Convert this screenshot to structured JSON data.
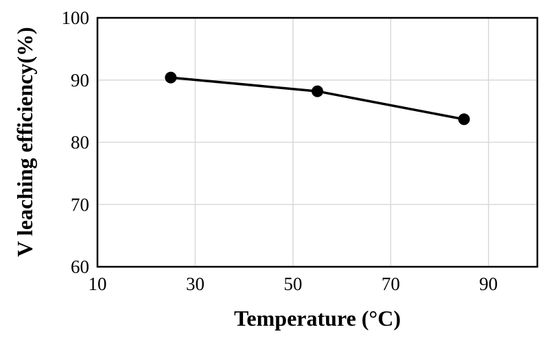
{
  "chart_data": {
    "type": "line",
    "title": "",
    "xlabel": "Temperature (°C)",
    "ylabel": "V leaching efficiency(%)",
    "xlim": [
      10,
      100
    ],
    "ylim": [
      60,
      100
    ],
    "x_ticks": [
      10,
      30,
      50,
      70,
      90
    ],
    "y_ticks": [
      60,
      70,
      80,
      90,
      100
    ],
    "grid": true,
    "legend_position": "none",
    "series": [
      {
        "name": "V leaching efficiency",
        "marker": "filled-circle",
        "line_color": "#000000",
        "marker_color": "#000000",
        "points": [
          {
            "x": 25,
            "y": 90.4
          },
          {
            "x": 55,
            "y": 88.2
          },
          {
            "x": 85,
            "y": 83.7
          }
        ]
      }
    ],
    "colors": {
      "background": "#ffffff",
      "plot_border": "#000000",
      "gridline": "#d9d9d9",
      "tick_text": "#000000",
      "axis_title_text": "#000000"
    }
  }
}
